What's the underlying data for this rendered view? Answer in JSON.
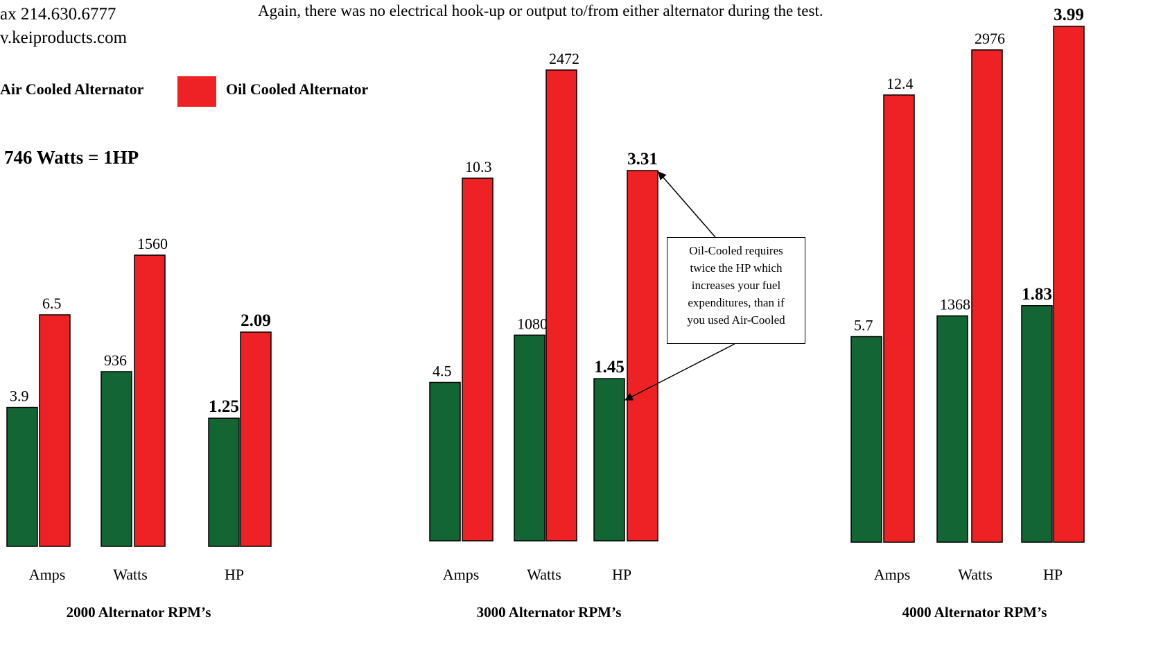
{
  "header": {
    "phone_fragment": "ax 214.630.6777",
    "web_fragment": "v.keiproducts.com",
    "note": "Again, there was no electrical hook-up or output to/from either alternator during the test."
  },
  "legend": {
    "air_label": "Air Cooled Alternator",
    "oil_label": "Oil Cooled Alternator"
  },
  "conversion": "746 Watts  = 1HP",
  "callout": {
    "lines": [
      "Oil-Cooled requires",
      "twice the HP which",
      "increases your fuel",
      "expenditures, than if",
      "you used Air-Cooled"
    ]
  },
  "colors": {
    "air": "#136534",
    "oil": "#ee2224"
  },
  "chart_data": [
    {
      "type": "bar",
      "title": "2000 Alternator RPM’s",
      "categories": [
        "Amps",
        "Watts",
        "HP"
      ],
      "series": [
        {
          "name": "Air Cooled Alternator",
          "values": [
            3.9,
            936,
            1.25
          ],
          "labels": [
            "3.9",
            "936",
            "1.25"
          ]
        },
        {
          "name": "Oil Cooled Alternator",
          "values": [
            6.5,
            1560,
            2.09
          ],
          "labels": [
            "6.5",
            "1560",
            "2.09"
          ]
        }
      ],
      "bold_categories": [
        "HP"
      ]
    },
    {
      "type": "bar",
      "title": "3000 Alternator RPM’s",
      "categories": [
        "Amps",
        "Watts",
        "HP"
      ],
      "series": [
        {
          "name": "Air Cooled Alternator",
          "values": [
            4.5,
            1080,
            1.45
          ],
          "labels": [
            "4.5",
            "1080",
            "1.45"
          ]
        },
        {
          "name": "Oil Cooled Alternator",
          "values": [
            10.3,
            2472,
            3.31
          ],
          "labels": [
            "10.3",
            "2472",
            "3.31"
          ]
        }
      ],
      "bold_categories": [
        "HP"
      ]
    },
    {
      "type": "bar",
      "title": "4000 Alternator RPM’s",
      "categories": [
        "Amps",
        "Watts",
        "HP"
      ],
      "series": [
        {
          "name": "Air Cooled Alternator",
          "values": [
            5.7,
            1368,
            1.83
          ],
          "labels": [
            "5.7",
            "1368",
            "1.83"
          ]
        },
        {
          "name": "Oil Cooled Alternator",
          "values": [
            12.4,
            2976,
            3.99
          ],
          "labels": [
            "12.4",
            "2976",
            "3.99"
          ]
        }
      ],
      "bold_categories": [
        "HP"
      ]
    }
  ]
}
